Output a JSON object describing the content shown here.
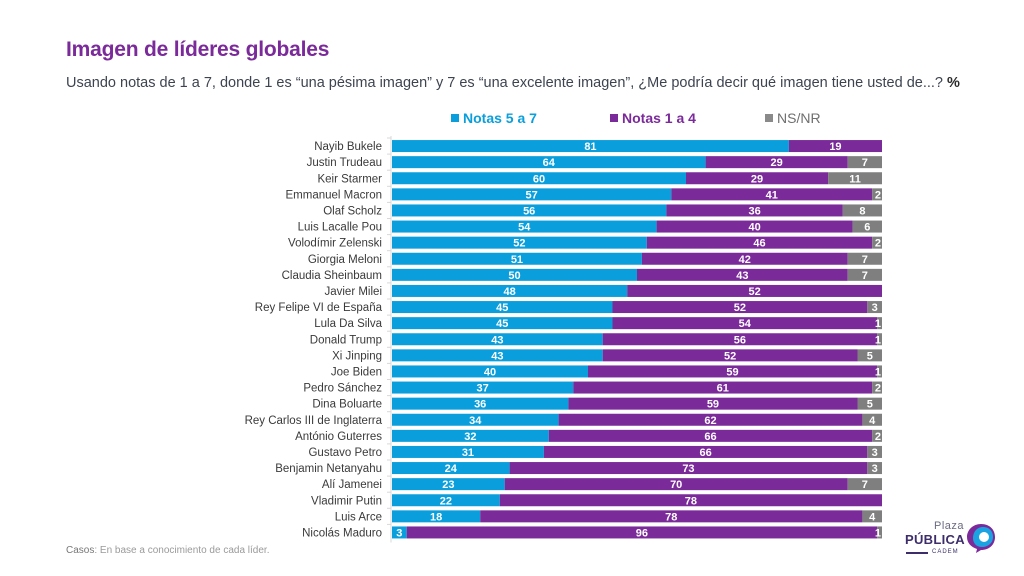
{
  "chart_data": {
    "type": "bar",
    "stacked": true,
    "orientation": "horizontal",
    "title": "Imagen de líderes globales",
    "subtitle": "Usando notas de 1 a 7, donde 1 es “una pésima imagen” y 7 es “una excelente imagen”, ¿Me podría decir qué imagen tiene usted de...?",
    "subtitle_unit": "%",
    "xlim": [
      0,
      100
    ],
    "grid": false,
    "legend_position": "top",
    "categories": [
      "Nayib Bukele",
      "Justin Trudeau",
      "Keir Starmer",
      "Emmanuel Macron",
      "Olaf Scholz",
      "Luis Lacalle Pou",
      "Volodímir Zelenski",
      "Giorgia Meloni",
      "Claudia Sheinbaum",
      "Javier Milei",
      "Rey Felipe VI de España",
      "Lula Da Silva",
      "Donald Trump",
      "Xi Jinping",
      "Joe Biden",
      "Pedro Sánchez",
      "Dina Boluarte",
      "Rey Carlos III de Inglaterra",
      "António Guterres",
      "Gustavo Petro",
      "Benjamin Netanyahu",
      "Alí Jamenei",
      "Vladimir Putin",
      "Luis Arce",
      "Nicolás Maduro"
    ],
    "series": [
      {
        "name": "Notas 5 a 7",
        "color": "#0a9fdc",
        "values": [
          81,
          64,
          60,
          57,
          56,
          54,
          52,
          51,
          50,
          48,
          45,
          45,
          43,
          43,
          40,
          37,
          36,
          34,
          32,
          31,
          24,
          23,
          22,
          18,
          3
        ]
      },
      {
        "name": "Notas 1 a 4",
        "color": "#7b2a9a",
        "values": [
          19,
          29,
          29,
          41,
          36,
          40,
          46,
          42,
          43,
          52,
          52,
          54,
          56,
          52,
          59,
          61,
          59,
          62,
          66,
          66,
          73,
          70,
          78,
          78,
          96
        ]
      },
      {
        "name": "NS/NR",
        "color": "#7f7f7f",
        "values": [
          0,
          7,
          11,
          2,
          8,
          6,
          2,
          7,
          7,
          0,
          3,
          1,
          1,
          5,
          1,
          2,
          5,
          4,
          2,
          3,
          3,
          7,
          0,
          4,
          1
        ]
      }
    ]
  },
  "legend": [
    {
      "label": "Notas 5 a 7",
      "color": "#0a9fdc"
    },
    {
      "label": "Notas 1 a 4",
      "color": "#7b2a9a"
    },
    {
      "label": "NS/NR",
      "color": "#7f7f7f"
    }
  ],
  "footer": {
    "key": "Casos",
    "text": ": En base a conocimiento de cada líder."
  },
  "logo": {
    "line1": "Plaza",
    "line2": "PÚBLICA",
    "line3": "CADEM"
  }
}
